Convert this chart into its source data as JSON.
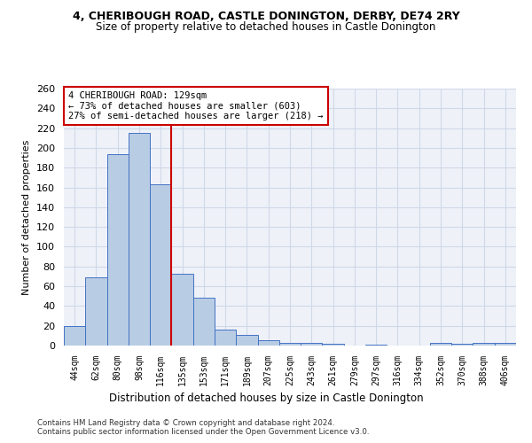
{
  "title1": "4, CHERIBOUGH ROAD, CASTLE DONINGTON, DERBY, DE74 2RY",
  "title2": "Size of property relative to detached houses in Castle Donington",
  "xlabel": "Distribution of detached houses by size in Castle Donington",
  "ylabel": "Number of detached properties",
  "categories": [
    "44sqm",
    "62sqm",
    "80sqm",
    "98sqm",
    "116sqm",
    "135sqm",
    "153sqm",
    "171sqm",
    "189sqm",
    "207sqm",
    "225sqm",
    "243sqm",
    "261sqm",
    "279sqm",
    "297sqm",
    "316sqm",
    "334sqm",
    "352sqm",
    "370sqm",
    "388sqm",
    "406sqm"
  ],
  "values": [
    20,
    69,
    194,
    215,
    163,
    73,
    48,
    16,
    11,
    5,
    3,
    3,
    2,
    0,
    1,
    0,
    0,
    3,
    2,
    3,
    3
  ],
  "bar_color": "#b8cce4",
  "bar_edge_color": "#4472c4",
  "grid_color": "#d0d8e8",
  "background_color": "#eef2f8",
  "vline_color": "#cc0000",
  "annotation_text": "4 CHERIBOUGH ROAD: 129sqm\n← 73% of detached houses are smaller (603)\n27% of semi-detached houses are larger (218) →",
  "annotation_box_color": "#ffffff",
  "annotation_box_edge": "#cc0000",
  "footer1": "Contains HM Land Registry data © Crown copyright and database right 2024.",
  "footer2": "Contains public sector information licensed under the Open Government Licence v3.0.",
  "ylim": [
    0,
    260
  ],
  "yticks": [
    0,
    20,
    40,
    60,
    80,
    100,
    120,
    140,
    160,
    180,
    200,
    220,
    240,
    260
  ],
  "vline_index": 4.5
}
